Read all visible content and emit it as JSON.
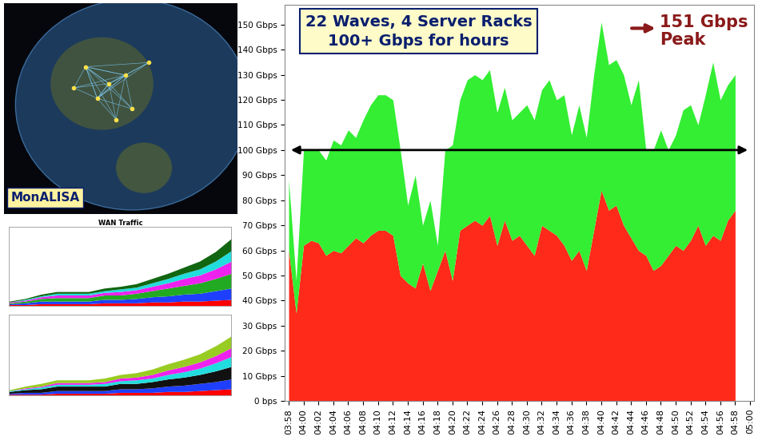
{
  "chart_data": [
    {
      "type": "area",
      "stacked": true,
      "grid": false,
      "title": "22 Waves, 4 Server Racks\n100+ Gbps for hours",
      "annotation": "151 Gbps\nPeak",
      "reference_arrow": 100,
      "categories": [
        "03:58",
        null,
        "04:00",
        null,
        "04:02",
        null,
        "04:04",
        null,
        "04:06",
        null,
        "04:08",
        null,
        "04:10",
        null,
        "04:12",
        null,
        "04:14",
        null,
        "04:16",
        null,
        "04:18",
        null,
        "04:20",
        null,
        "04:22",
        null,
        "04:24",
        null,
        "04:26",
        null,
        "04:28",
        null,
        "04:30",
        null,
        "04:32",
        null,
        "04:34",
        null,
        "04:36",
        null,
        "04:38",
        null,
        "04:40",
        null,
        "04:42",
        null,
        "04:44",
        null,
        "04:46",
        null,
        "04:48",
        null,
        "04:50",
        null,
        "04:52",
        null,
        "04:54",
        null,
        "04:56",
        null,
        "04:58",
        null,
        "05:00"
      ],
      "series": [
        {
          "color": "#ff2a1a",
          "values": [
            60,
            35,
            62,
            64,
            63,
            58,
            60,
            59,
            62,
            65,
            63,
            66,
            68,
            68,
            66,
            50,
            47,
            45,
            55,
            44,
            52,
            60,
            48,
            68,
            70,
            72,
            70,
            74,
            62,
            72,
            64,
            66,
            62,
            58,
            70,
            68,
            66,
            62,
            56,
            60,
            52,
            68,
            84,
            76,
            78,
            70,
            65,
            60,
            58,
            52,
            54,
            58,
            62,
            60,
            64,
            70,
            62,
            66,
            64,
            72,
            76,
            null,
            null
          ]
        },
        {
          "color": "#33ee33",
          "values": [
            28,
            13,
            38,
            36,
            37,
            38,
            44,
            43,
            46,
            40,
            49,
            52,
            54,
            54,
            54,
            50,
            31,
            45,
            15,
            36,
            10,
            40,
            54,
            52,
            58,
            58,
            58,
            58,
            53,
            53,
            48,
            49,
            56,
            54,
            54,
            60,
            54,
            60,
            50,
            58,
            53,
            62,
            67,
            58,
            58,
            60,
            53,
            68,
            42,
            48,
            54,
            42,
            44,
            56,
            54,
            40,
            60,
            69,
            56,
            54,
            54,
            null,
            null
          ]
        }
      ],
      "ylim": [
        0,
        158
      ],
      "yticks": [
        {
          "value": 0,
          "label": "0 bps"
        },
        {
          "value": 10,
          "label": "10 Gbps"
        },
        {
          "value": 20,
          "label": "20 Gbps"
        },
        {
          "value": 30,
          "label": "30 Gbps"
        },
        {
          "value": 40,
          "label": "40 Gbps"
        },
        {
          "value": 50,
          "label": "50 Gbps"
        },
        {
          "value": 60,
          "label": "60 Gbps"
        },
        {
          "value": 70,
          "label": "70 Gbps"
        },
        {
          "value": 80,
          "label": "80 Gbps"
        },
        {
          "value": 90,
          "label": "90 Gbps"
        },
        {
          "value": 100,
          "label": "100 Gbps"
        },
        {
          "value": 110,
          "label": "110 Gbps"
        },
        {
          "value": 120,
          "label": "120 Gbps"
        },
        {
          "value": 130,
          "label": "130 Gbps"
        },
        {
          "value": 140,
          "label": "140 Gbps"
        },
        {
          "value": 150,
          "label": "150 Gbps"
        }
      ]
    },
    {
      "type": "area",
      "stacked": true,
      "grid": false,
      "tick_labels": false,
      "title": "WAN Traffic",
      "x": [
        0,
        1,
        2,
        3,
        4,
        5,
        6,
        7,
        8,
        9,
        10,
        11,
        12,
        13,
        14
      ],
      "xlim": [
        0,
        14
      ],
      "ylim": [
        0,
        90
      ],
      "series": [
        {
          "color": "#ff0000",
          "values": [
            1,
            1,
            2,
            2,
            2,
            2,
            3,
            3,
            3,
            4,
            4,
            5,
            5,
            6,
            7
          ]
        },
        {
          "color": "#1f3fff",
          "values": [
            1,
            2,
            3,
            3,
            3,
            3,
            4,
            4,
            5,
            6,
            7,
            8,
            9,
            11,
            13
          ]
        },
        {
          "color": "#22aa22",
          "values": [
            1,
            2,
            3,
            4,
            4,
            4,
            5,
            5,
            6,
            7,
            9,
            10,
            12,
            14,
            17
          ]
        },
        {
          "color": "#ee22ee",
          "values": [
            1,
            1,
            2,
            3,
            3,
            3,
            3,
            4,
            4,
            5,
            6,
            8,
            9,
            11,
            14
          ]
        },
        {
          "color": "#22dddd",
          "values": [
            0,
            1,
            1,
            2,
            2,
            2,
            2,
            3,
            3,
            4,
            5,
            6,
            7,
            9,
            12
          ]
        },
        {
          "color": "#116611",
          "values": [
            1,
            1,
            2,
            2,
            2,
            2,
            3,
            3,
            4,
            5,
            6,
            7,
            9,
            11,
            14
          ]
        }
      ]
    },
    {
      "type": "area",
      "stacked": true,
      "grid": false,
      "tick_labels": false,
      "x": [
        0,
        1,
        2,
        3,
        4,
        5,
        6,
        7,
        8,
        9,
        10,
        11,
        12,
        13,
        14
      ],
      "xlim": [
        0,
        14
      ],
      "ylim": [
        0,
        90
      ],
      "series": [
        {
          "color": "#ff0000",
          "values": [
            1,
            1,
            1,
            2,
            2,
            2,
            2,
            3,
            3,
            3,
            4,
            4,
            5,
            6,
            7
          ]
        },
        {
          "color": "#1f3fff",
          "values": [
            1,
            2,
            2,
            3,
            3,
            3,
            3,
            4,
            4,
            5,
            6,
            7,
            8,
            9,
            11
          ]
        },
        {
          "color": "#111111",
          "values": [
            2,
            3,
            4,
            5,
            5,
            5,
            5,
            6,
            6,
            7,
            8,
            9,
            10,
            12,
            14
          ]
        },
        {
          "color": "#22dddd",
          "values": [
            1,
            1,
            2,
            2,
            2,
            2,
            3,
            3,
            4,
            4,
            5,
            6,
            7,
            9,
            11
          ]
        },
        {
          "color": "#ee22ee",
          "values": [
            0,
            1,
            1,
            2,
            2,
            2,
            2,
            3,
            3,
            4,
            5,
            6,
            7,
            8,
            10
          ]
        },
        {
          "color": "#99cc22",
          "values": [
            1,
            2,
            3,
            3,
            3,
            3,
            4,
            4,
            5,
            6,
            7,
            8,
            9,
            11,
            13
          ]
        }
      ]
    }
  ],
  "image_panel": {
    "label": "MonALISA"
  }
}
